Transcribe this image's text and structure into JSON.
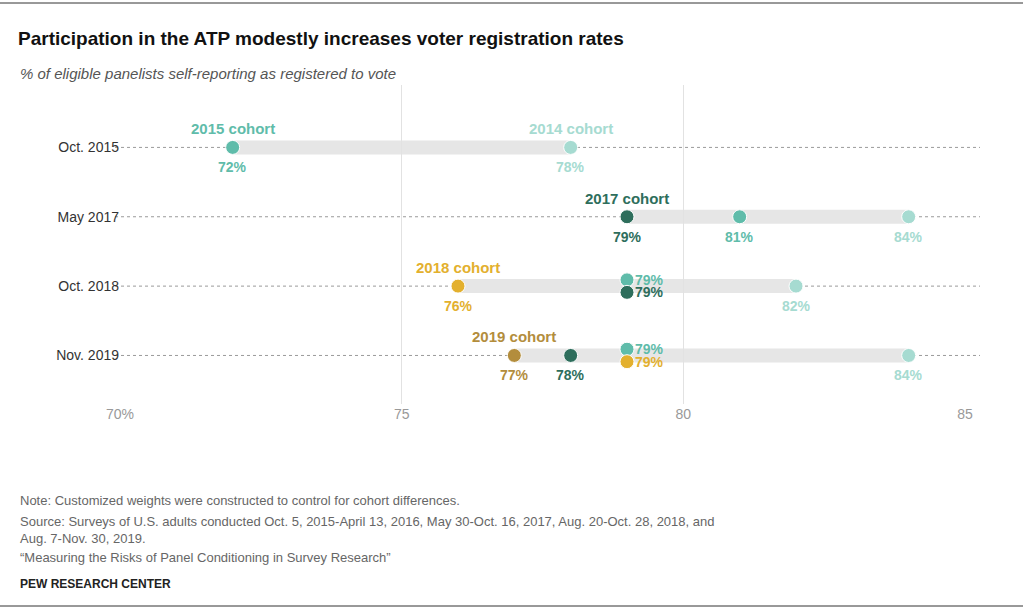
{
  "chart_data": {
    "type": "dot",
    "title": "Participation in the ATP modestly increases voter registration rates",
    "subtitle": "% of eligible panelists self-reporting as registered to vote",
    "categories": [
      "Oct. 2015",
      "May 2017",
      "Oct. 2018",
      "Nov. 2019"
    ],
    "series": [
      {
        "name": "2014 cohort",
        "color": "#a6dbd1",
        "values": [
          78,
          84,
          82,
          84
        ],
        "value_labels": [
          "78%",
          "84%",
          "82%",
          "84%"
        ]
      },
      {
        "name": "2015 cohort",
        "color": "#5fbcaa",
        "values": [
          72,
          81,
          79,
          79
        ],
        "value_labels": [
          "72%",
          "81%",
          "79%",
          "79%"
        ]
      },
      {
        "name": "2017 cohort",
        "color": "#2e6e5c",
        "values": [
          null,
          79,
          79,
          78
        ],
        "value_labels": [
          null,
          "79%",
          "79%",
          "78%"
        ]
      },
      {
        "name": "2018 cohort",
        "color": "#e3b02e",
        "values": [
          null,
          null,
          76,
          79
        ],
        "value_labels": [
          null,
          null,
          "76%",
          "79%"
        ]
      },
      {
        "name": "2019 cohort",
        "color": "#b38d3c",
        "values": [
          null,
          null,
          null,
          77
        ],
        "value_labels": [
          null,
          null,
          null,
          "77%"
        ]
      }
    ],
    "xlim": [
      70,
      85
    ],
    "xticks": [
      {
        "value": 70,
        "label": "70%"
      },
      75,
      80,
      85
    ],
    "grid": true,
    "data_labels": true,
    "note": "Note: Customized weights were constructed to control for cohort differences.",
    "source": [
      "Source: Surveys of U.S. adults conducted Oct. 5, 2015-April 13, 2016, May 30-Oct. 16, 2017, Aug. 20-Oct. 28, 2018, and",
      "Aug. 7-Nov. 30, 2019."
    ],
    "report": "“Measuring the Risks of Panel Conditioning in Survey Research”",
    "footer": "PEW RESEARCH CENTER"
  }
}
